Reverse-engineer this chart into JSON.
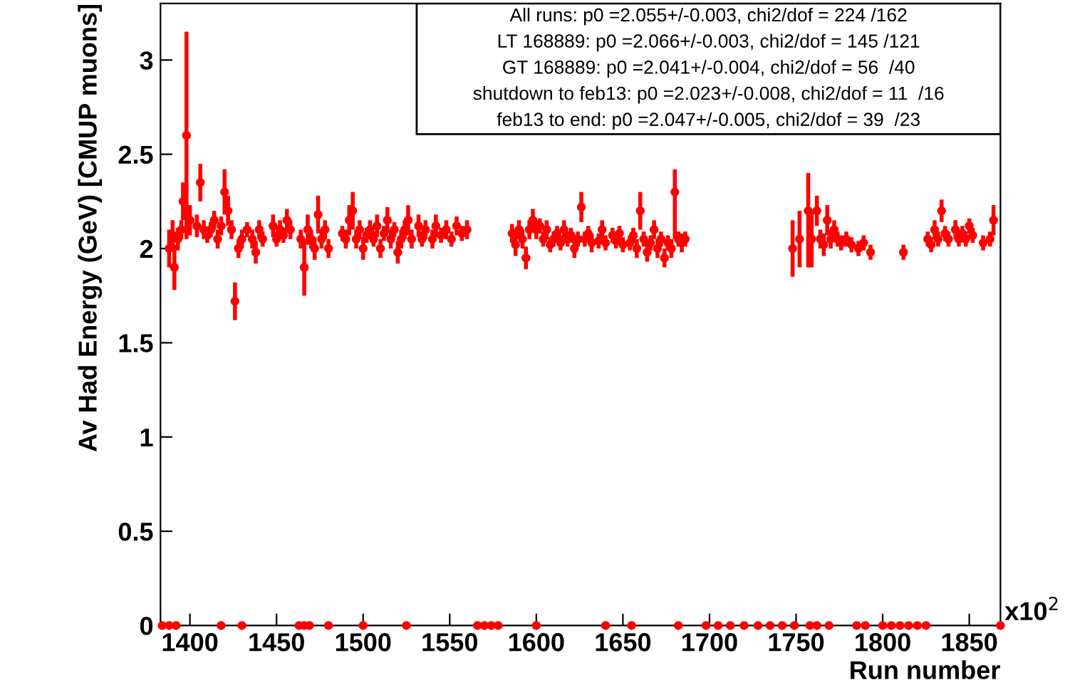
{
  "chart_data": {
    "type": "scatter",
    "xlabel": "Run number",
    "ylabel": "Av Had Energy (GeV) [CMUP muons]",
    "xlim": [
      1383,
      1868
    ],
    "ylim": [
      0,
      3.3
    ],
    "xticks": [
      1400,
      1450,
      1500,
      1550,
      1600,
      1650,
      1700,
      1750,
      1800,
      1850
    ],
    "yticks": [
      0,
      0.5,
      1,
      1.5,
      2,
      2.5,
      3
    ],
    "grid": false,
    "legend": false,
    "marker": "circle",
    "annotations": [
      "All runs: p0 =2.055+/-0.003, chi2/dof = 224 /162",
      "LT 168889: p0 =2.066+/-0.003, chi2/dof = 145 /121",
      "GT 168889: p0 =2.041+/-0.004, chi2/dof = 56  /40",
      "shutdown to feb13: p0 =2.023+/-0.008, chi2/dof = 11  /16",
      "feb13 to end: p0 =2.047+/-0.005, chi2/dof = 39  /23",
      "x10$^{2}$"
    ],
    "series": [
      {
        "color": "#ff0000",
        "x": [
          1388,
          1390,
          1391,
          1393,
          1395,
          1396,
          1398,
          1400,
          1404,
          1406,
          1408,
          1410,
          1412,
          1414,
          1416,
          1418,
          1420,
          1422,
          1424,
          1426,
          1428,
          1430,
          1433,
          1436,
          1438,
          1440,
          1442,
          1448,
          1450,
          1452,
          1454,
          1456,
          1458,
          1464,
          1466,
          1468,
          1470,
          1472,
          1474,
          1476,
          1478,
          1480,
          1488,
          1490,
          1492,
          1494,
          1496,
          1498,
          1500,
          1502,
          1504,
          1506,
          1508,
          1510,
          1512,
          1514,
          1516,
          1518,
          1520,
          1522,
          1524,
          1526,
          1528,
          1532,
          1534,
          1536,
          1540,
          1542,
          1545,
          1548,
          1551,
          1554,
          1557,
          1560,
          1586,
          1588,
          1590,
          1592,
          1594,
          1596,
          1598,
          1600,
          1602,
          1604,
          1606,
          1608,
          1610,
          1612,
          1614,
          1616,
          1618,
          1620,
          1622,
          1624,
          1626,
          1628,
          1630,
          1632,
          1636,
          1638,
          1640,
          1644,
          1646,
          1648,
          1650,
          1654,
          1656,
          1658,
          1660,
          1662,
          1664,
          1666,
          1668,
          1670,
          1672,
          1674,
          1676,
          1678,
          1680,
          1682,
          1684,
          1686,
          1748,
          1752,
          1757,
          1759,
          1762,
          1764,
          1766,
          1768,
          1770,
          1772,
          1774,
          1776,
          1779,
          1782,
          1786,
          1789,
          1793,
          1812,
          1826,
          1828,
          1830,
          1832,
          1834,
          1836,
          1838,
          1842,
          1844,
          1846,
          1848,
          1850,
          1852,
          1858,
          1862,
          1864
        ],
        "values": [
          2.0,
          2.07,
          1.9,
          2.05,
          2.1,
          2.25,
          2.6,
          2.15,
          2.12,
          2.35,
          2.1,
          2.07,
          2.1,
          2.15,
          2.05,
          2.12,
          2.3,
          2.2,
          2.1,
          1.72,
          2.0,
          2.05,
          2.1,
          2.05,
          1.98,
          2.1,
          2.05,
          2.12,
          2.05,
          2.1,
          2.07,
          2.15,
          2.1,
          2.05,
          1.9,
          2.1,
          2.05,
          2.0,
          2.18,
          2.05,
          2.1,
          2.0,
          2.08,
          2.05,
          2.15,
          2.2,
          2.05,
          2.1,
          2.0,
          2.07,
          2.1,
          2.05,
          2.12,
          2.0,
          2.08,
          2.15,
          2.05,
          2.1,
          1.98,
          2.05,
          2.1,
          2.15,
          2.05,
          2.12,
          2.05,
          2.1,
          2.05,
          2.12,
          2.07,
          2.1,
          2.05,
          2.12,
          2.08,
          2.1,
          2.08,
          2.02,
          2.1,
          2.05,
          1.95,
          2.1,
          2.15,
          2.1,
          2.12,
          2.05,
          2.1,
          2.02,
          2.05,
          2.08,
          2.03,
          2.1,
          2.05,
          2.07,
          2.0,
          2.05,
          2.22,
          2.05,
          2.08,
          2.03,
          2.04,
          2.1,
          2.03,
          2.07,
          2.04,
          2.08,
          2.02,
          2.03,
          2.07,
          2.0,
          2.2,
          2.05,
          1.98,
          2.03,
          2.1,
          2.0,
          2.05,
          1.95,
          2.03,
          2.0,
          2.3,
          2.05,
          2.03,
          2.05,
          2.0,
          2.05,
          2.2,
          2.05,
          2.2,
          2.05,
          2.02,
          2.15,
          2.05,
          2.1,
          2.05,
          2.03,
          2.05,
          2.02,
          2.0,
          2.03,
          1.98,
          1.98,
          2.05,
          2.02,
          2.1,
          2.05,
          2.2,
          2.08,
          2.05,
          2.1,
          2.05,
          2.08,
          2.05,
          2.12,
          2.07,
          2.03,
          2.05,
          2.15
        ],
        "errors": [
          0.1,
          0.08,
          0.12,
          0.06,
          0.05,
          0.1,
          0.55,
          0.08,
          0.06,
          0.1,
          0.05,
          0.04,
          0.04,
          0.05,
          0.05,
          0.05,
          0.12,
          0.08,
          0.05,
          0.1,
          0.05,
          0.05,
          0.04,
          0.05,
          0.06,
          0.05,
          0.04,
          0.06,
          0.04,
          0.05,
          0.04,
          0.06,
          0.05,
          0.05,
          0.15,
          0.08,
          0.05,
          0.06,
          0.1,
          0.05,
          0.05,
          0.05,
          0.04,
          0.05,
          0.08,
          0.1,
          0.05,
          0.05,
          0.06,
          0.04,
          0.05,
          0.04,
          0.06,
          0.05,
          0.04,
          0.07,
          0.05,
          0.04,
          0.06,
          0.05,
          0.05,
          0.08,
          0.05,
          0.06,
          0.04,
          0.05,
          0.05,
          0.06,
          0.04,
          0.05,
          0.04,
          0.05,
          0.04,
          0.05,
          0.05,
          0.06,
          0.05,
          0.05,
          0.06,
          0.05,
          0.06,
          0.05,
          0.04,
          0.04,
          0.05,
          0.04,
          0.04,
          0.04,
          0.04,
          0.05,
          0.04,
          0.04,
          0.05,
          0.04,
          0.08,
          0.04,
          0.04,
          0.05,
          0.04,
          0.05,
          0.04,
          0.04,
          0.04,
          0.04,
          0.04,
          0.04,
          0.04,
          0.05,
          0.1,
          0.04,
          0.05,
          0.04,
          0.05,
          0.05,
          0.04,
          0.05,
          0.04,
          0.05,
          [
            2.05,
            2.42
          ],
          0.04,
          0.05,
          0.04,
          0.15,
          0.15,
          [
            1.9,
            2.4
          ],
          0.15,
          0.08,
          0.05,
          0.06,
          0.08,
          0.05,
          0.05,
          0.04,
          0.04,
          0.04,
          0.04,
          0.04,
          0.04,
          0.04,
          0.04,
          0.04,
          0.04,
          0.05,
          0.04,
          0.06,
          0.04,
          0.04,
          0.05,
          0.04,
          0.04,
          0.04,
          0.04,
          0.04,
          0.04,
          0.04,
          0.08
        ]
      },
      {
        "color": "#ff0000",
        "x": [
          1384,
          1388,
          1392,
          1418,
          1430,
          1463,
          1466,
          1469,
          1480,
          1500,
          1525,
          1566,
          1570,
          1574,
          1578,
          1600,
          1640,
          1655,
          1682,
          1698,
          1705,
          1712,
          1720,
          1728,
          1735,
          1742,
          1749,
          1758,
          1762,
          1769,
          1785,
          1790,
          1800,
          1805,
          1810,
          1815,
          1820,
          1825,
          1868
        ],
        "values": [
          0,
          0,
          0,
          0,
          0,
          0,
          0,
          0,
          0,
          0,
          0,
          0,
          0,
          0,
          0,
          0,
          0,
          0,
          0,
          0,
          0,
          0,
          0,
          0,
          0,
          0,
          0,
          0,
          0,
          0,
          0,
          0,
          0,
          0,
          0,
          0,
          0,
          0,
          0
        ]
      }
    ]
  }
}
